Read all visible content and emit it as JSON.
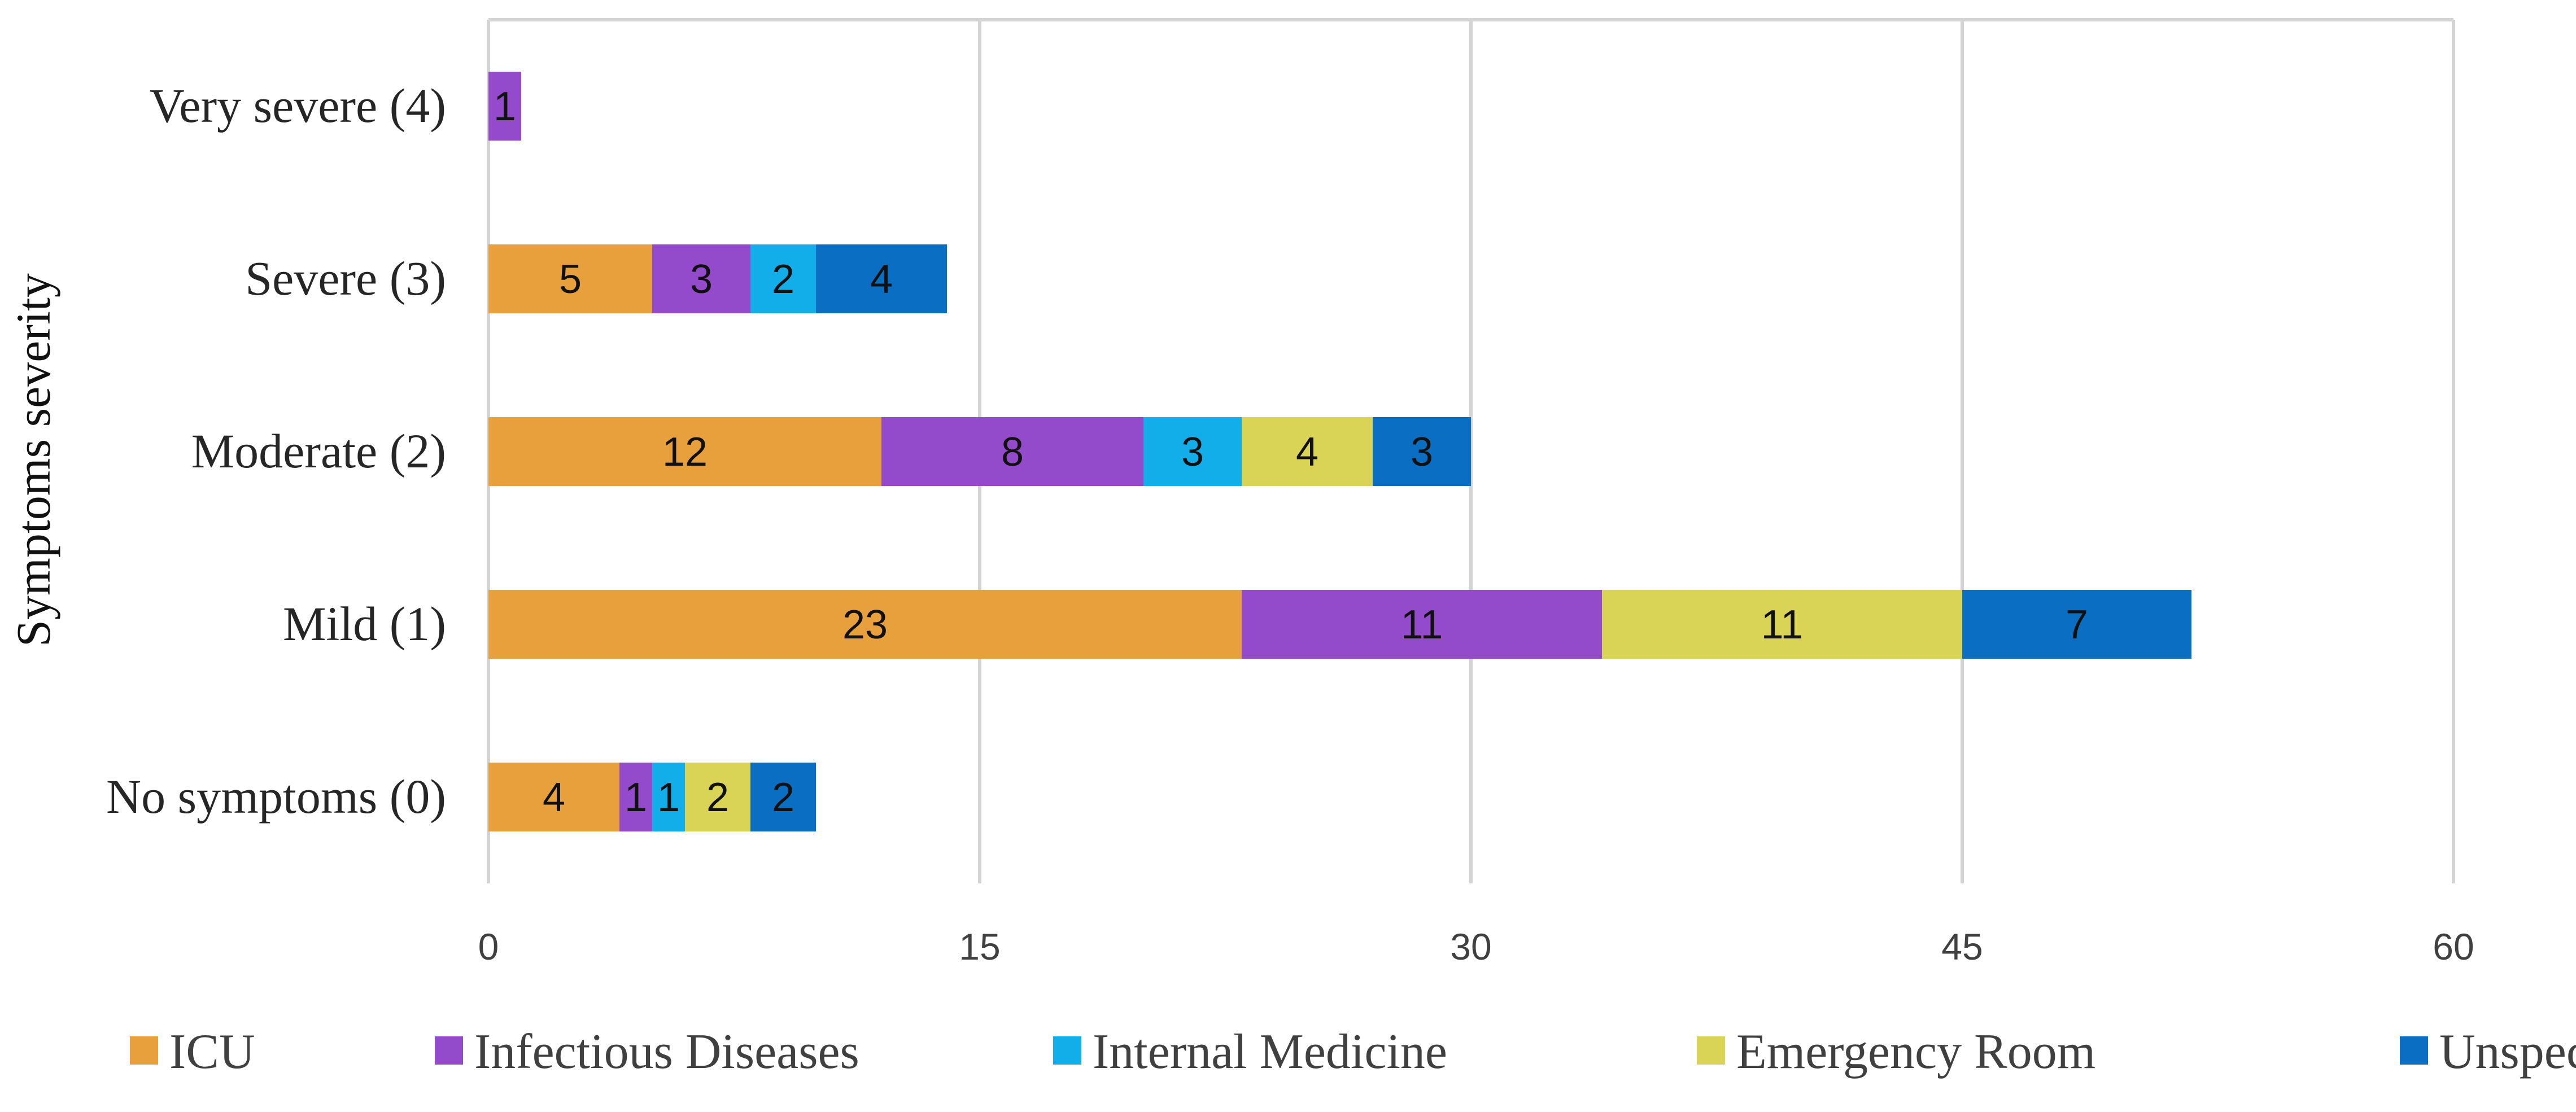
{
  "chart_data": {
    "type": "bar",
    "orientation": "horizontal",
    "stacked": true,
    "title": "",
    "xlabel": "",
    "ylabel": "Symptoms severity",
    "xlim": [
      0,
      60
    ],
    "xticks": [
      0,
      15,
      30,
      45,
      60
    ],
    "grid": "vertical",
    "legend_position": "bottom",
    "categories": [
      "No symptoms (0)",
      "Mild (1)",
      "Moderate (2)",
      "Severe (3)",
      "Very severe (4)"
    ],
    "series": [
      {
        "name": "ICU",
        "color": "#E8A03D",
        "values": [
          4,
          23,
          12,
          5,
          0
        ]
      },
      {
        "name": "Infectious Diseases",
        "color": "#934BCB",
        "values": [
          1,
          11,
          8,
          3,
          1
        ]
      },
      {
        "name": "Internal Medicine",
        "color": "#12AEEA",
        "values": [
          1,
          0,
          3,
          2,
          0
        ]
      },
      {
        "name": "Emergency Room",
        "color": "#D9D456",
        "values": [
          2,
          11,
          4,
          0,
          0
        ]
      },
      {
        "name": "Unspecified",
        "color": "#0A6FC2",
        "values": [
          2,
          7,
          3,
          4,
          0
        ]
      }
    ]
  }
}
